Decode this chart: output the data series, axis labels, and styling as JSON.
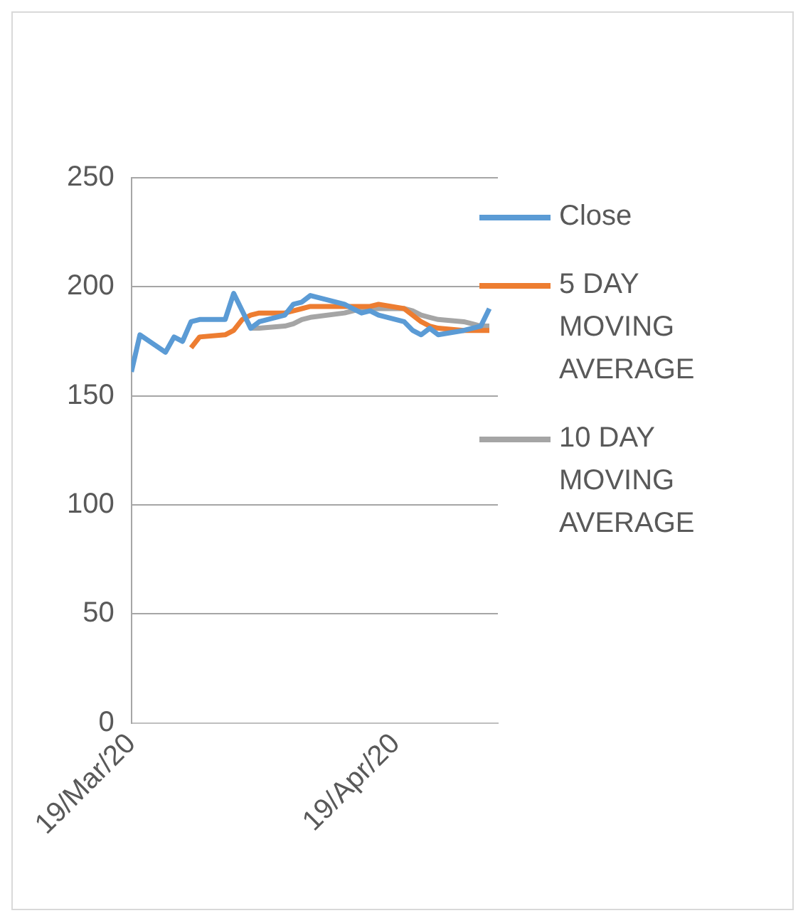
{
  "chart_data": {
    "type": "line",
    "legend": "right",
    "grid": "y",
    "line_style": "solid",
    "marker": "none",
    "xlim": [
      "2020-03-19",
      "2020-05-01"
    ],
    "xticks": [
      {
        "value": "2020-03-19",
        "label": "19/Mar/20"
      },
      {
        "value": "2020-04-19",
        "label": "19/Apr/20"
      }
    ],
    "ylim": [
      0,
      250
    ],
    "yticks": [
      0,
      50,
      100,
      150,
      200,
      250
    ],
    "series": [
      {
        "name": "Close",
        "color": "#5b9bd5",
        "x": [
          "2020-03-19",
          "2020-03-20",
          "2020-03-23",
          "2020-03-24",
          "2020-03-25",
          "2020-03-26",
          "2020-03-27",
          "2020-03-30",
          "2020-03-31",
          "2020-04-01",
          "2020-04-02",
          "2020-04-03",
          "2020-04-06",
          "2020-04-07",
          "2020-04-08",
          "2020-04-09",
          "2020-04-13",
          "2020-04-14",
          "2020-04-15",
          "2020-04-16",
          "2020-04-17",
          "2020-04-20",
          "2020-04-21",
          "2020-04-22",
          "2020-04-23",
          "2020-04-24",
          "2020-04-27",
          "2020-04-28",
          "2020-04-29",
          "2020-04-30"
        ],
        "values": [
          161,
          178,
          170,
          177,
          175,
          184,
          185,
          185,
          197,
          189,
          181,
          184,
          187,
          192,
          193,
          196,
          192,
          190,
          188,
          189,
          187,
          184,
          180,
          178,
          181,
          178,
          180,
          181,
          182,
          190
        ]
      },
      {
        "name": "5 DAY MOVING AVERAGE",
        "color": "#ed7d31",
        "x": [
          "2020-03-26",
          "2020-03-27",
          "2020-03-30",
          "2020-03-31",
          "2020-04-01",
          "2020-04-02",
          "2020-04-03",
          "2020-04-06",
          "2020-04-07",
          "2020-04-08",
          "2020-04-09",
          "2020-04-13",
          "2020-04-14",
          "2020-04-15",
          "2020-04-16",
          "2020-04-17",
          "2020-04-20",
          "2020-04-21",
          "2020-04-22",
          "2020-04-23",
          "2020-04-24",
          "2020-04-27",
          "2020-04-28",
          "2020-04-29",
          "2020-04-30"
        ],
        "values": [
          172,
          177,
          178,
          180,
          185,
          187,
          188,
          188,
          189,
          190,
          191,
          191,
          191,
          191,
          191,
          192,
          190,
          187,
          184,
          182,
          181,
          180,
          180,
          180,
          180
        ]
      },
      {
        "name": "10 DAY MOVING AVERAGE",
        "color": "#a5a5a5",
        "x": [
          "2020-04-02",
          "2020-04-03",
          "2020-04-06",
          "2020-04-07",
          "2020-04-08",
          "2020-04-09",
          "2020-04-13",
          "2020-04-14",
          "2020-04-15",
          "2020-04-16",
          "2020-04-17",
          "2020-04-20",
          "2020-04-21",
          "2020-04-22",
          "2020-04-23",
          "2020-04-24",
          "2020-04-27",
          "2020-04-28",
          "2020-04-29",
          "2020-04-30"
        ],
        "values": [
          181,
          181,
          182,
          183,
          185,
          186,
          188,
          189,
          190,
          190,
          190,
          190,
          189,
          187,
          186,
          185,
          184,
          183,
          182,
          182
        ]
      }
    ]
  }
}
